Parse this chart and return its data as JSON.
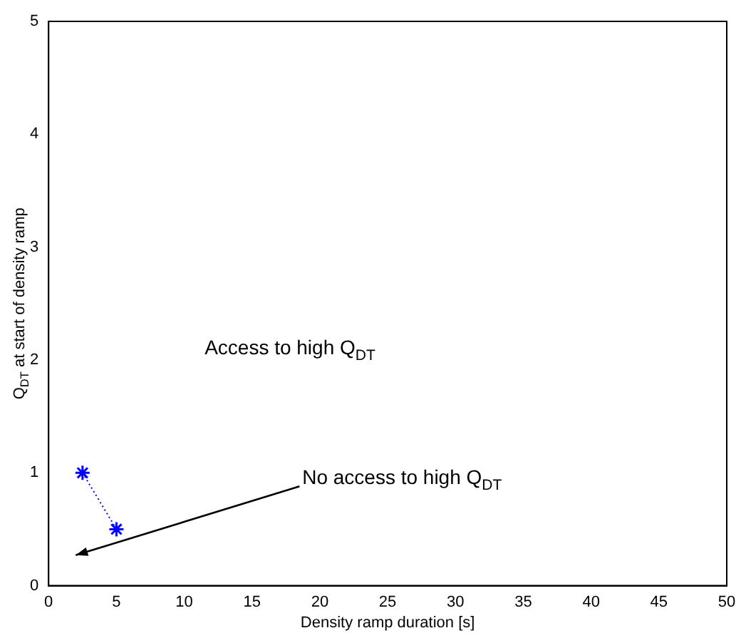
{
  "chart_data": {
    "type": "line",
    "xlabel": "Density ramp duration [s]",
    "ylabel": "Q$_{DT}$ at start of density ramp",
    "x": [
      2.5,
      5
    ],
    "series": [
      {
        "color": "#0000ff",
        "values": [
          1,
          0.5
        ]
      }
    ],
    "marker": "cross",
    "line_style": "dotted",
    "grid": false,
    "legend": false,
    "xlim": [
      0,
      50
    ],
    "xticks": [
      0,
      5,
      10,
      15,
      20,
      25,
      30,
      35,
      40,
      45,
      50
    ],
    "ylim": [
      0,
      5
    ],
    "yticks": [
      0,
      1,
      2,
      3,
      4,
      5
    ],
    "annotations": [
      "Access to high Q$_{DT}$",
      "No access to high Q$_{DT}$"
    ]
  }
}
